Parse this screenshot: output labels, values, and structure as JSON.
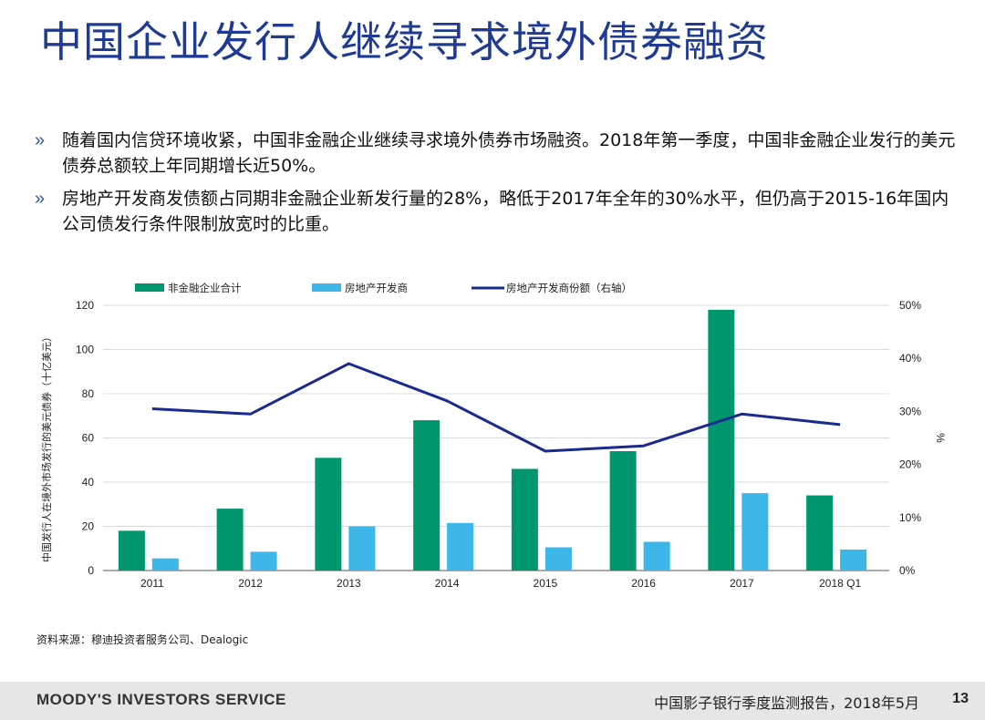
{
  "title": "中国企业发行人继续寻求境外债券融资",
  "bullets": [
    "随着国内信贷环境收紧，中国非金融企业继续寻求境外债券市场融资。2018年第一季度，中国非金融企业发行的美元债券总额较上年同期增长近50%。",
    "房地产开发商发债额占同期非金融企业新发行量的28%，略低于2017年全年的30%水平，但仍高于2015-16年国内公司债发行条件限制放宽时的比重。"
  ],
  "bullet_mark": "»",
  "chart_data": {
    "type": "bar",
    "categories": [
      "2011",
      "2012",
      "2013",
      "2014",
      "2015",
      "2016",
      "2017",
      "2018 Q1"
    ],
    "series": [
      {
        "name": "非金融企业合计",
        "kind": "bar",
        "axis": "left",
        "color": "#00966e",
        "values": [
          18,
          28,
          51,
          68,
          46,
          54,
          118,
          34
        ]
      },
      {
        "name": "房地产开发商",
        "kind": "bar",
        "axis": "left",
        "color": "#3db6ea",
        "values": [
          5.5,
          8.5,
          20,
          21.5,
          10.5,
          13,
          35,
          9.5
        ]
      },
      {
        "name": "房地产开发商份额（右轴）",
        "kind": "line",
        "axis": "right",
        "color": "#1a2b8f",
        "values": [
          30.5,
          29.5,
          39,
          32,
          22.5,
          23.5,
          29.5,
          27.5
        ]
      }
    ],
    "ylabel": "中国发行人在境外市场发行的美元债券（十亿美元）",
    "ylabel_right": "%",
    "ylim": [
      0,
      120
    ],
    "yticks": [
      "0",
      "20",
      "40",
      "60",
      "80",
      "100",
      "120"
    ],
    "ylim_right": [
      0,
      50
    ],
    "yticks_right": [
      "0%",
      "10%",
      "20%",
      "30%",
      "40%",
      "50%"
    ],
    "grid": true,
    "legend": "top"
  },
  "source": "资料来源：穆迪投资者服务公司、Dealogic",
  "footer": {
    "brand": "MOODY'S INVESTORS SERVICE",
    "report": "中国影子银行季度监测报告，2018年5月",
    "page": "13"
  }
}
